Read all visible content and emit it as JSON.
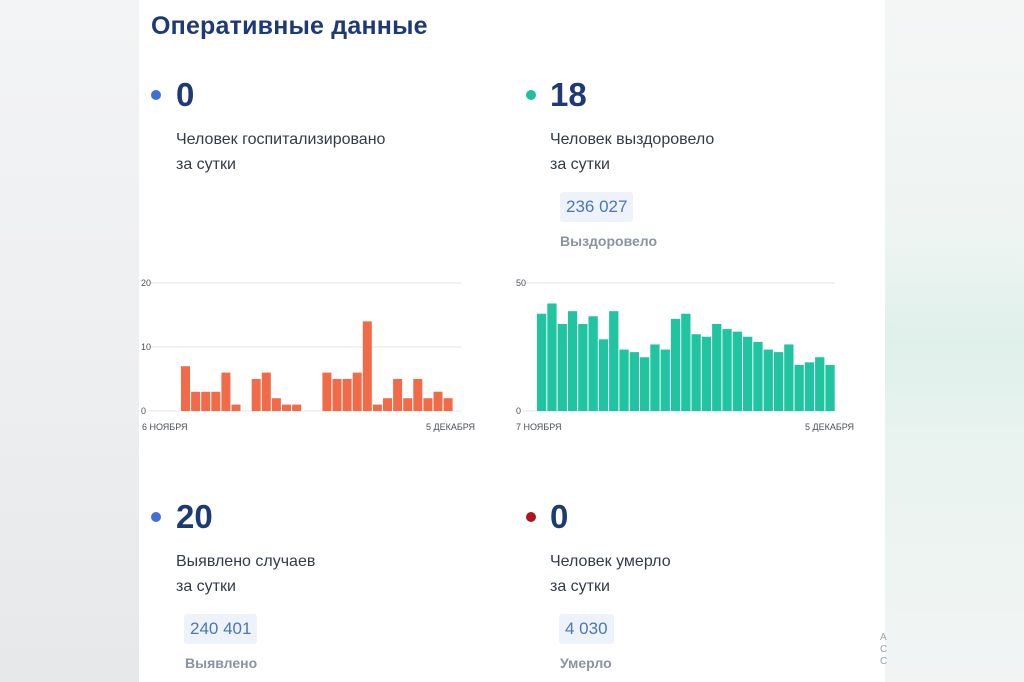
{
  "header": {
    "title": "Оперативные данные"
  },
  "colors": {
    "blue_dot": "#3f6fd8",
    "teal_dot": "#1fbf9f",
    "red_dot": "#b0141f",
    "bar_orange": "#f26b49",
    "bar_teal": "#21c4a0",
    "grid": "#e4e6e9"
  },
  "stats": {
    "hospitalized": {
      "value": "0",
      "label_line1": "Человек госпитализировано",
      "label_line2": "за сутки"
    },
    "recovered": {
      "value": "18",
      "label_line1": "Человек выздоровело",
      "label_line2": "за сутки",
      "total": "236 027",
      "total_caption": "Выздоровело"
    },
    "cases": {
      "value": "20",
      "label_line1": "Выявлено случаев",
      "label_line2": "за сутки",
      "total": "240 401",
      "total_caption": "Выявлено"
    },
    "deaths": {
      "value": "0",
      "label_line1": "Человек умерло",
      "label_line2": "за сутки",
      "total": "4 030",
      "total_caption": "Умерло"
    }
  },
  "chart_data": [
    {
      "type": "bar",
      "title": "Человек госпитализировано",
      "x_start_label": "6 НОЯБРЯ",
      "x_end_label": "5 ДЕКАБРЯ",
      "y_ticks": [
        0,
        10,
        20
      ],
      "ylim": [
        0,
        20
      ],
      "values": [
        7,
        3,
        3,
        3,
        6,
        1,
        null,
        5,
        6,
        2,
        1,
        1,
        null,
        null,
        6,
        5,
        5,
        6,
        14,
        1,
        2,
        5,
        2,
        5,
        2,
        3,
        2
      ]
    },
    {
      "type": "bar",
      "title": "Человек выздоровело",
      "x_start_label": "7 НОЯБРЯ",
      "x_end_label": "5 ДЕКАБРЯ",
      "y_ticks": [
        0,
        50
      ],
      "ylim": [
        0,
        50
      ],
      "values": [
        38,
        42,
        34,
        39,
        34,
        37,
        28,
        39,
        24,
        23,
        21,
        26,
        24,
        36,
        38,
        30,
        29,
        34,
        32,
        31,
        29,
        27,
        24,
        23,
        26,
        18,
        19,
        21,
        18
      ]
    }
  ],
  "edge_marks": [
    "А",
    "С",
    "С"
  ]
}
